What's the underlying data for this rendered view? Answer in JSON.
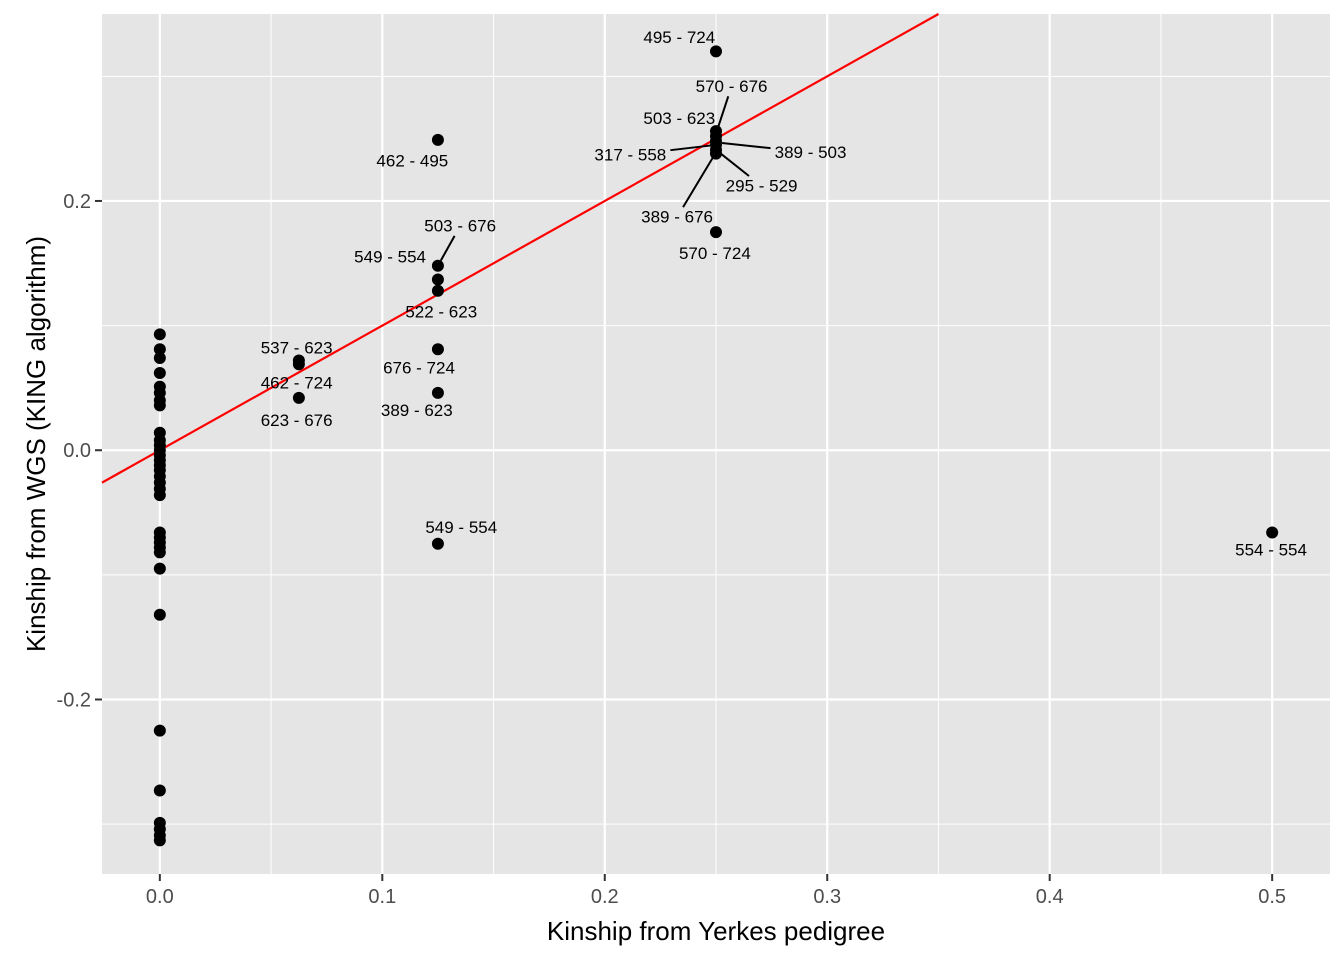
{
  "chart_data": {
    "type": "scatter",
    "title": "",
    "xlabel": "Kinship from Yerkes pedigree",
    "ylabel": "Kinship from WGS (KING algorithm)",
    "xlim": [
      -0.026,
      0.526
    ],
    "ylim": [
      -0.34,
      0.35
    ],
    "x_ticks": [
      0.0,
      0.1,
      0.2,
      0.3,
      0.4,
      0.5
    ],
    "x_tick_labels": [
      "0.0",
      "0.1",
      "0.2",
      "0.3",
      "0.4",
      "0.5"
    ],
    "y_ticks": [
      -0.2,
      0.0,
      0.2
    ],
    "y_tick_labels": [
      "-0.2",
      "0.0",
      "0.2"
    ],
    "grid": true,
    "panel_background": "#e5e5e5",
    "grid_color": "#ffffff",
    "point_color": "#000000",
    "fit_line": {
      "intercept": 0.0,
      "slope": 1.0,
      "color": "#ff0000"
    },
    "points": [
      {
        "x": 0,
        "y": 0.093
      },
      {
        "x": 0,
        "y": 0.081
      },
      {
        "x": 0,
        "y": 0.074
      },
      {
        "x": 0,
        "y": 0.062
      },
      {
        "x": 0,
        "y": 0.051
      },
      {
        "x": 0,
        "y": 0.046
      },
      {
        "x": 0,
        "y": 0.04
      },
      {
        "x": 0,
        "y": 0.036
      },
      {
        "x": 0,
        "y": 0.014
      },
      {
        "x": 0,
        "y": 0.008
      },
      {
        "x": 0,
        "y": 0.004
      },
      {
        "x": 0,
        "y": 0.0
      },
      {
        "x": 0,
        "y": -0.004
      },
      {
        "x": 0,
        "y": -0.008
      },
      {
        "x": 0,
        "y": -0.012
      },
      {
        "x": 0,
        "y": -0.016
      },
      {
        "x": 0,
        "y": -0.021
      },
      {
        "x": 0,
        "y": -0.026
      },
      {
        "x": 0,
        "y": -0.031
      },
      {
        "x": 0,
        "y": -0.036
      },
      {
        "x": 0,
        "y": -0.066
      },
      {
        "x": 0,
        "y": -0.07
      },
      {
        "x": 0,
        "y": -0.074
      },
      {
        "x": 0,
        "y": -0.078
      },
      {
        "x": 0,
        "y": -0.082
      },
      {
        "x": 0,
        "y": -0.095
      },
      {
        "x": 0,
        "y": -0.132
      },
      {
        "x": 0,
        "y": -0.225
      },
      {
        "x": 0,
        "y": -0.273
      },
      {
        "x": 0,
        "y": -0.299
      },
      {
        "x": 0,
        "y": -0.304
      },
      {
        "x": 0,
        "y": -0.309
      },
      {
        "x": 0,
        "y": -0.313
      },
      {
        "x": 0.0625,
        "y": 0.072
      },
      {
        "x": 0.0625,
        "y": 0.069
      },
      {
        "x": 0.0625,
        "y": 0.042
      },
      {
        "x": 0.125,
        "y": 0.249
      },
      {
        "x": 0.125,
        "y": 0.148
      },
      {
        "x": 0.125,
        "y": 0.137
      },
      {
        "x": 0.125,
        "y": 0.128
      },
      {
        "x": 0.125,
        "y": 0.081
      },
      {
        "x": 0.125,
        "y": 0.046
      },
      {
        "x": 0.125,
        "y": -0.075
      },
      {
        "x": 0.25,
        "y": 0.32
      },
      {
        "x": 0.25,
        "y": 0.256
      },
      {
        "x": 0.25,
        "y": 0.252
      },
      {
        "x": 0.25,
        "y": 0.248
      },
      {
        "x": 0.25,
        "y": 0.245
      },
      {
        "x": 0.25,
        "y": 0.241
      },
      {
        "x": 0.25,
        "y": 0.238
      },
      {
        "x": 0.25,
        "y": 0.175
      },
      {
        "x": 0.5,
        "y": -0.066
      }
    ],
    "labels": [
      {
        "text": "495 - 724",
        "x": 0.25,
        "y": 0.32,
        "lx": 0.2335,
        "ly": 0.331,
        "leader": false
      },
      {
        "text": "570 - 676",
        "x": 0.25,
        "y": 0.254,
        "lx": 0.257,
        "ly": 0.292,
        "leader": true
      },
      {
        "text": "503 - 623",
        "x": 0.25,
        "y": 0.252,
        "lx": 0.2335,
        "ly": 0.266,
        "leader": false
      },
      {
        "text": "389 - 503",
        "x": 0.25,
        "y": 0.247,
        "lx": 0.2925,
        "ly": 0.239,
        "leader": true
      },
      {
        "text": "317 - 558",
        "x": 0.25,
        "y": 0.245,
        "lx": 0.2115,
        "ly": 0.237,
        "leader": true
      },
      {
        "text": "295 - 529",
        "x": 0.25,
        "y": 0.241,
        "lx": 0.2705,
        "ly": 0.212,
        "leader": true
      },
      {
        "text": "389 - 676",
        "x": 0.25,
        "y": 0.239,
        "lx": 0.2325,
        "ly": 0.187,
        "leader": true
      },
      {
        "text": "570 - 724",
        "x": 0.25,
        "y": 0.175,
        "lx": 0.2495,
        "ly": 0.158,
        "leader": false
      },
      {
        "text": "462 - 495",
        "x": 0.125,
        "y": 0.249,
        "lx": 0.1135,
        "ly": 0.232,
        "leader": false
      },
      {
        "text": "503 - 676",
        "x": 0.125,
        "y": 0.148,
        "lx": 0.135,
        "ly": 0.18,
        "leader": true
      },
      {
        "text": "549 - 554",
        "x": 0.125,
        "y": 0.148,
        "lx": 0.1035,
        "ly": 0.155,
        "leader": true
      },
      {
        "text": "522 - 623",
        "x": 0.125,
        "y": 0.128,
        "lx": 0.1265,
        "ly": 0.111,
        "leader": false
      },
      {
        "text": "676 - 724",
        "x": 0.125,
        "y": 0.081,
        "lx": 0.1165,
        "ly": 0.066,
        "leader": false
      },
      {
        "text": "389 - 623",
        "x": 0.125,
        "y": 0.046,
        "lx": 0.1155,
        "ly": 0.032,
        "leader": false
      },
      {
        "text": "549 - 554",
        "x": 0.125,
        "y": -0.075,
        "lx": 0.1355,
        "ly": -0.062,
        "leader": false
      },
      {
        "text": "537 - 623",
        "x": 0.0625,
        "y": 0.072,
        "lx": 0.0615,
        "ly": 0.082,
        "leader": false
      },
      {
        "text": "462 - 724",
        "x": 0.0625,
        "y": 0.069,
        "lx": 0.0615,
        "ly": 0.054,
        "leader": false
      },
      {
        "text": "623 - 676",
        "x": 0.0625,
        "y": 0.042,
        "lx": 0.0615,
        "ly": 0.024,
        "leader": false
      },
      {
        "text": "554 - 554",
        "x": 0.5,
        "y": -0.066,
        "lx": 0.4995,
        "ly": -0.08,
        "leader": false
      }
    ]
  }
}
